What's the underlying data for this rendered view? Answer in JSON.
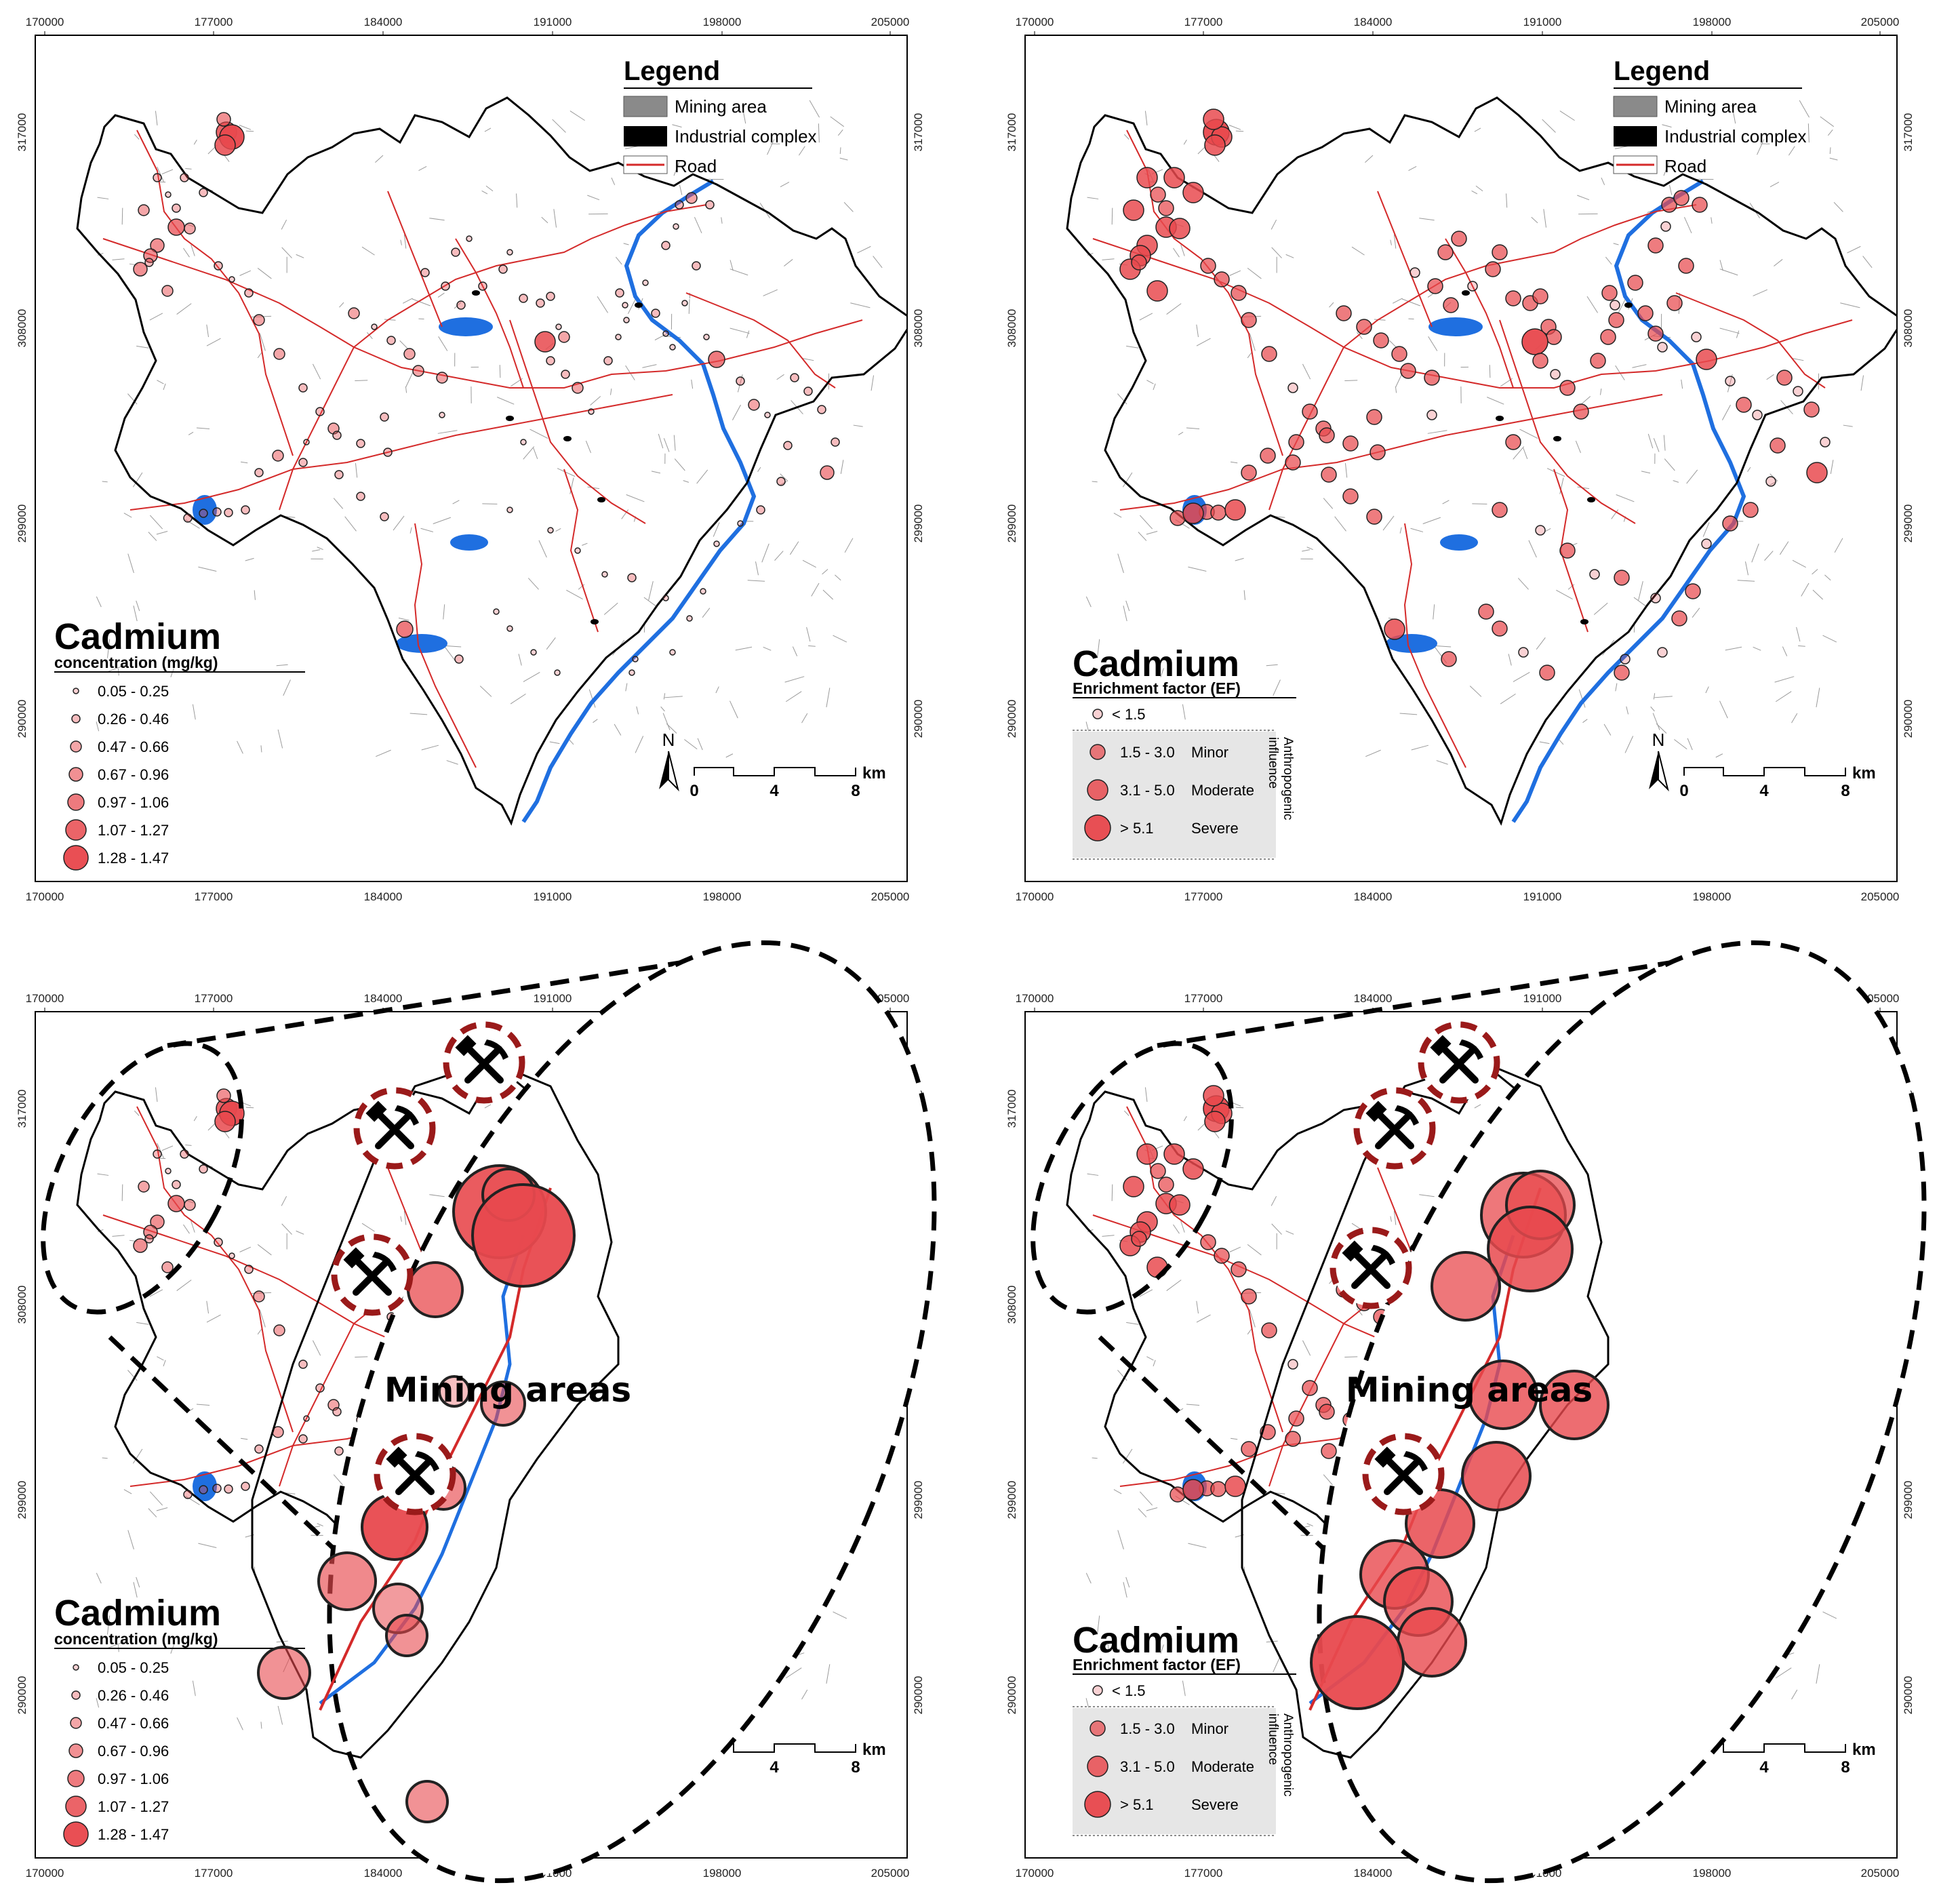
{
  "colors": {
    "sample_fill": "#e8494e",
    "sample_stroke": "#222222",
    "road": "#d42a2a",
    "river": "#1f6fe0",
    "mine_ring": "#9a1a1a",
    "boundary": "#000000",
    "ef_legend_bg": "#e6e6e6"
  },
  "axes": {
    "x_ticks": [
      "170000",
      "177000",
      "184000",
      "191000",
      "198000",
      "205000"
    ],
    "y_ticks": [
      "317000",
      "308000",
      "299000",
      "290000"
    ]
  },
  "map_legend": {
    "title": "Legend",
    "items": [
      {
        "label": "Mining area",
        "swatch": "mining-area-swatch"
      },
      {
        "label": "Industrial complex",
        "swatch": "industrial-complex-swatch"
      },
      {
        "label": "Road",
        "swatch": "road-swatch"
      }
    ]
  },
  "concentration_legend": {
    "title": "Cadmium",
    "subtitle": "concentration (mg/kg)",
    "classes": [
      "0.05 - 0.25",
      "0.26 - 0.46",
      "0.47 - 0.66",
      "0.67 - 0.96",
      "0.97 - 1.06",
      "1.07 - 1.27",
      "1.28 - 1.47"
    ]
  },
  "ef_legend": {
    "title": "Cadmium",
    "subtitle": "Enrichment factor (EF)",
    "low_class": "< 1.5",
    "classes": [
      {
        "range": "1.5 - 3.0",
        "label": "Minor"
      },
      {
        "range": "3.1 - 5.0",
        "label": "Moderate"
      },
      {
        "range": "> 5.1",
        "label": "Severe"
      }
    ],
    "influence_label_1": "Anthropogenic",
    "influence_label_2": "influence"
  },
  "north_arrow": {
    "label": "N"
  },
  "scale_bar": {
    "labels": [
      "0",
      "4",
      "8"
    ],
    "unit": "km"
  },
  "callout": {
    "label": "Mining areas"
  },
  "icons": {
    "mine": "pickaxe-hammer-icon",
    "north": "north-arrow-icon"
  }
}
